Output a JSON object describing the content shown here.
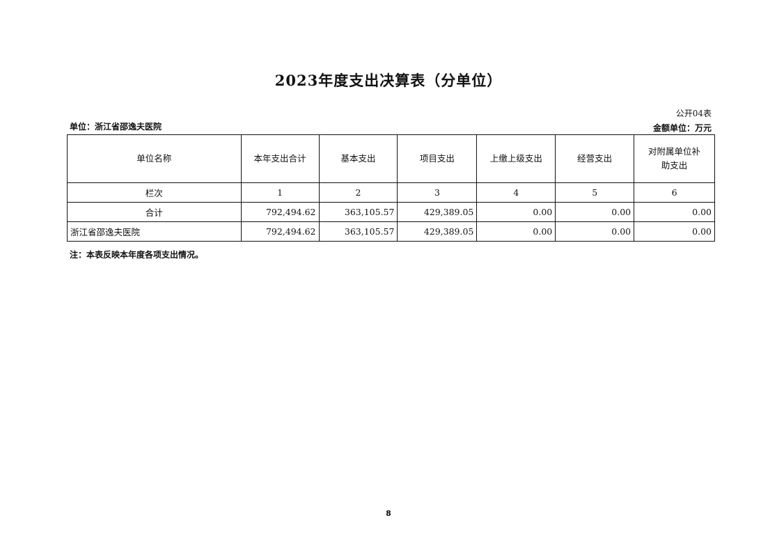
{
  "title": "2023年度支出决算表（分单位）",
  "form_number": "公开04表",
  "unit_label": "单位：浙江省邵逸夫医院",
  "money_unit": "金额单位：万元",
  "table": {
    "headers": [
      "单位名称",
      "本年支出合计",
      "基本支出",
      "项目支出",
      "上缴上级支出",
      "经营支出",
      "对附属单位补助支出"
    ],
    "column_index_row": [
      "栏次",
      "1",
      "2",
      "3",
      "4",
      "5",
      "6"
    ],
    "rows": [
      [
        "合计",
        "792,494.62",
        "363,105.57",
        "429,389.05",
        "0.00",
        "0.00",
        "0.00"
      ],
      [
        "浙江省邵逸夫医院",
        "792,494.62",
        "363,105.57",
        "429,389.05",
        "0.00",
        "0.00",
        "0.00"
      ]
    ]
  },
  "note": "注：本表反映本年度各项支出情况。",
  "page_number": "8"
}
